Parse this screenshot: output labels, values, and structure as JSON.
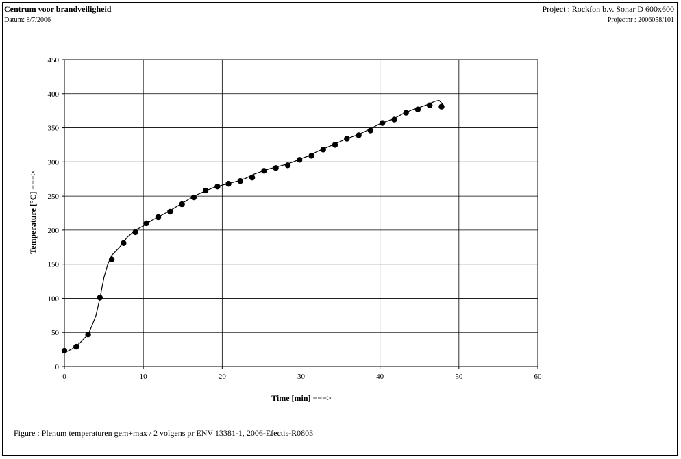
{
  "header": {
    "title": "Centrum voor brandveiligheid",
    "date": "Datum: 8/7/2006",
    "project": "Project : Rockfon b.v. Sonar D 600x600",
    "projectnr": "Projectnr : 2006058/101"
  },
  "caption": "Figure : Plenum temperaturen gem+max / 2 volgens pr ENV 13381-1, 2006-Efectis-R0803",
  "chart_data": {
    "type": "line",
    "title": "",
    "xlabel": "Time [min] ===>",
    "ylabel": "Temperature [°C] ===>",
    "xlim": [
      0,
      60
    ],
    "ylim": [
      0,
      450
    ],
    "xticks": [
      0,
      10,
      20,
      30,
      40,
      50,
      60
    ],
    "yticks": [
      0,
      50,
      100,
      150,
      200,
      250,
      300,
      350,
      400,
      450
    ],
    "grid": true,
    "legend": "none",
    "series": [
      {
        "style": "line",
        "x": [
          0,
          1,
          2,
          3,
          3.5,
          4,
          4.5,
          5,
          5.5,
          6,
          7,
          8,
          9,
          10,
          11,
          12,
          13,
          14,
          15,
          16,
          17,
          18,
          19,
          20,
          21,
          22,
          23,
          24,
          25,
          26,
          27,
          28,
          29,
          30,
          31,
          32,
          33,
          34,
          35,
          36,
          37,
          38,
          39,
          40,
          41,
          42,
          43,
          44,
          45,
          46,
          47,
          47.5,
          48
        ],
        "y": [
          20,
          26,
          35,
          47,
          60,
          75,
          100,
          130,
          150,
          163,
          175,
          190,
          200,
          206,
          214,
          220,
          226,
          233,
          240,
          247,
          253,
          258,
          263,
          266,
          269,
          272,
          276,
          282,
          286,
          290,
          293,
          296,
          300,
          305,
          309,
          315,
          320,
          325,
          330,
          335,
          339,
          344,
          350,
          356,
          360,
          365,
          371,
          376,
          380,
          384,
          389,
          390,
          384
        ]
      },
      {
        "style": "markers",
        "x": [
          0,
          1.5,
          3,
          4.5,
          6,
          7.5,
          9,
          10.4,
          11.9,
          13.4,
          14.9,
          16.4,
          17.9,
          19.4,
          20.8,
          22.3,
          23.8,
          25.3,
          26.8,
          28.3,
          29.8,
          31.3,
          32.8,
          34.3,
          35.8,
          37.3,
          38.8,
          40.3,
          41.8,
          43.3,
          44.8,
          46.3,
          47.8
        ],
        "y": [
          23,
          29,
          47,
          101,
          157,
          181,
          197,
          210,
          219,
          227,
          238,
          248,
          258,
          264,
          268,
          272,
          277,
          287,
          291,
          295,
          303,
          309,
          318,
          325,
          334,
          339,
          346,
          357,
          362,
          372,
          377,
          383,
          381
        ]
      }
    ]
  }
}
